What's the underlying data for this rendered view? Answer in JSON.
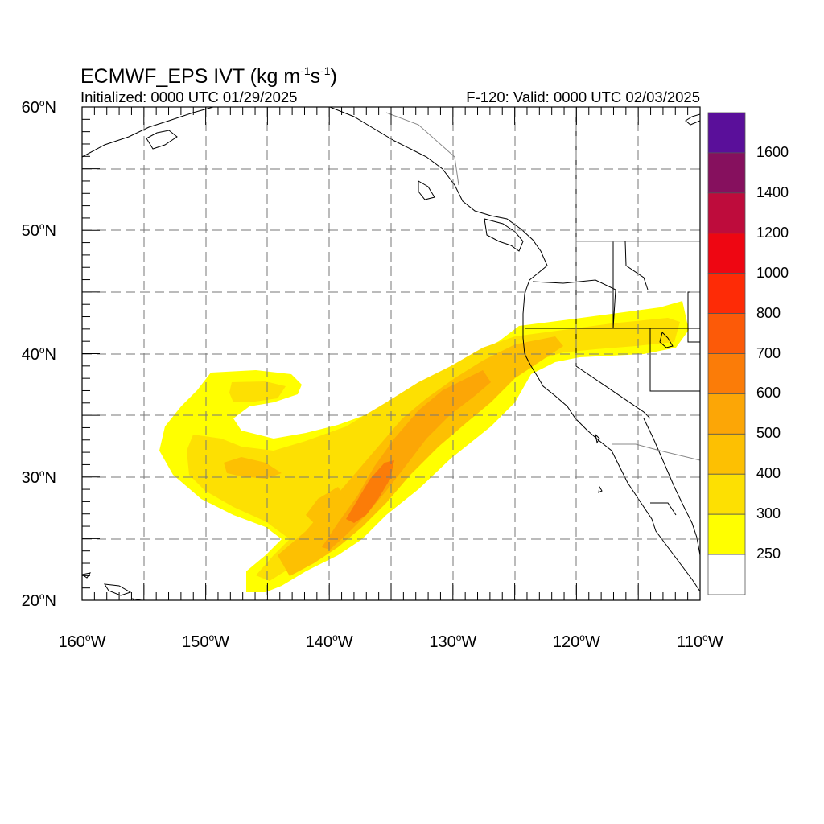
{
  "map": {
    "title_prefix": "ECMWF_EPS IVT (kg m",
    "title_sup1": "-1",
    "title_mid": "s",
    "title_sup2": "-1",
    "title_suffix": ")",
    "initialized": "Initialized: 0000 UTC 01/29/2025",
    "valid": "F-120: Valid: 0000 UTC 02/03/2025",
    "region": "North Pacific / U.S. West Coast",
    "lat_labels": [
      {
        "num": "60",
        "hem": "N"
      },
      {
        "num": "50",
        "hem": "N"
      },
      {
        "num": "40",
        "hem": "N"
      },
      {
        "num": "30",
        "hem": "N"
      },
      {
        "num": "20",
        "hem": "N"
      }
    ],
    "lon_labels": [
      {
        "num": "160",
        "hem": "W"
      },
      {
        "num": "150",
        "hem": "W"
      },
      {
        "num": "140",
        "hem": "W"
      },
      {
        "num": "130",
        "hem": "W"
      },
      {
        "num": "120",
        "hem": "W"
      },
      {
        "num": "110",
        "hem": "W"
      }
    ],
    "degree_symbol": "o"
  },
  "colorbar": {
    "labels": [
      "1600",
      "1400",
      "1200",
      "1000",
      "800",
      "700",
      "600",
      "500",
      "400",
      "300",
      "250"
    ],
    "colors": [
      "#5a0f9a",
      "#86105e",
      "#be0c3c",
      "#ee0612",
      "#fe2b06",
      "#fc5a08",
      "#fb7c08",
      "#fca606",
      "#fdc002",
      "#fde002",
      "#ffff00",
      "#ffffff"
    ]
  },
  "ivt_field": {
    "units": "kg m-1 s-1",
    "feature": "atmospheric river",
    "levels": [
      {
        "min": 250,
        "color": "#ffff00"
      },
      {
        "min": 300,
        "color": "#fde002"
      },
      {
        "min": 400,
        "color": "#fdc002"
      },
      {
        "min": 500,
        "color": "#fca606"
      },
      {
        "min": 600,
        "color": "#fb7c08"
      }
    ]
  }
}
